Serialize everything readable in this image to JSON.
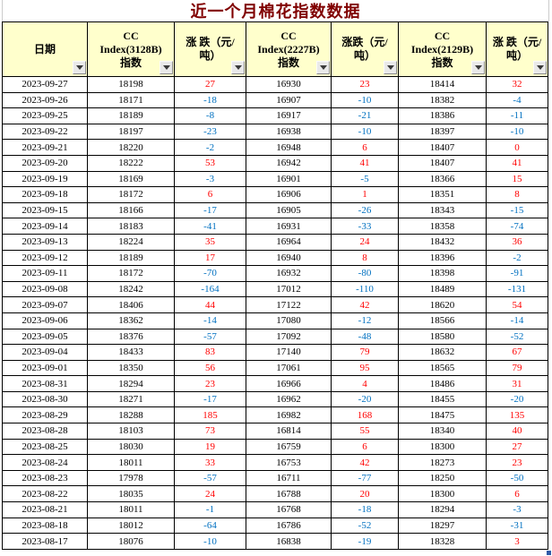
{
  "title": "近一个月棉花指数数据",
  "colors": {
    "title": "#800000",
    "header_bg": "#FFFFCC",
    "positive": "#FF0000",
    "negative": "#0070C0",
    "grid": "#000000",
    "fill_handle": "#2F5BA8"
  },
  "table": {
    "columns": [
      {
        "label": "日期"
      },
      {
        "label": "CC\nIndex(3128B)\n指数"
      },
      {
        "label": "涨 跌（元/\n吨）"
      },
      {
        "label": "CC\nIndex(2227B)\n指数"
      },
      {
        "label": "涨跌（元/\n吨）"
      },
      {
        "label": "CC\nIndex(2129B)\n指数"
      },
      {
        "label": "涨 跌（元/\n吨）"
      }
    ],
    "rows": [
      [
        "2023-09-27",
        "18198",
        "27",
        "16930",
        "23",
        "18414",
        "32"
      ],
      [
        "2023-09-26",
        "18171",
        "-18",
        "16907",
        "-10",
        "18382",
        "-4"
      ],
      [
        "2023-09-25",
        "18189",
        "-8",
        "16917",
        "-21",
        "18386",
        "-11"
      ],
      [
        "2023-09-22",
        "18197",
        "-23",
        "16938",
        "-10",
        "18397",
        "-10"
      ],
      [
        "2023-09-21",
        "18220",
        "-2",
        "16948",
        "6",
        "18407",
        "0"
      ],
      [
        "2023-09-20",
        "18222",
        "53",
        "16942",
        "41",
        "18407",
        "41"
      ],
      [
        "2023-09-19",
        "18169",
        "-3",
        "16901",
        "-5",
        "18366",
        "15"
      ],
      [
        "2023-09-18",
        "18172",
        "6",
        "16906",
        "1",
        "18351",
        "8"
      ],
      [
        "2023-09-15",
        "18166",
        "-17",
        "16905",
        "-26",
        "18343",
        "-15"
      ],
      [
        "2023-09-14",
        "18183",
        "-41",
        "16931",
        "-33",
        "18358",
        "-74"
      ],
      [
        "2023-09-13",
        "18224",
        "35",
        "16964",
        "24",
        "18432",
        "36"
      ],
      [
        "2023-09-12",
        "18189",
        "17",
        "16940",
        "8",
        "18396",
        "-2"
      ],
      [
        "2023-09-11",
        "18172",
        "-70",
        "16932",
        "-80",
        "18398",
        "-91"
      ],
      [
        "2023-09-08",
        "18242",
        "-164",
        "17012",
        "-110",
        "18489",
        "-131"
      ],
      [
        "2023-09-07",
        "18406",
        "44",
        "17122",
        "42",
        "18620",
        "54"
      ],
      [
        "2023-09-06",
        "18362",
        "-14",
        "17080",
        "-12",
        "18566",
        "-14"
      ],
      [
        "2023-09-05",
        "18376",
        "-57",
        "17092",
        "-48",
        "18580",
        "-52"
      ],
      [
        "2023-09-04",
        "18433",
        "83",
        "17140",
        "79",
        "18632",
        "67"
      ],
      [
        "2023-09-01",
        "18350",
        "56",
        "17061",
        "95",
        "18565",
        "79"
      ],
      [
        "2023-08-31",
        "18294",
        "23",
        "16966",
        "4",
        "18486",
        "31"
      ],
      [
        "2023-08-30",
        "18271",
        "-17",
        "16962",
        "-20",
        "18455",
        "-20"
      ],
      [
        "2023-08-29",
        "18288",
        "185",
        "16982",
        "168",
        "18475",
        "135"
      ],
      [
        "2023-08-28",
        "18103",
        "73",
        "16814",
        "55",
        "18340",
        "40"
      ],
      [
        "2023-08-25",
        "18030",
        "19",
        "16759",
        "6",
        "18300",
        "27"
      ],
      [
        "2023-08-24",
        "18011",
        "33",
        "16753",
        "42",
        "18273",
        "23"
      ],
      [
        "2023-08-23",
        "17978",
        "-57",
        "16711",
        "-77",
        "18250",
        "-50"
      ],
      [
        "2023-08-22",
        "18035",
        "24",
        "16788",
        "20",
        "18300",
        "6"
      ],
      [
        "2023-08-21",
        "18011",
        "-1",
        "16768",
        "-18",
        "18294",
        "-3"
      ],
      [
        "2023-08-18",
        "18012",
        "-64",
        "16786",
        "-52",
        "18297",
        "-31"
      ],
      [
        "2023-08-17",
        "18076",
        "-10",
        "16838",
        "-19",
        "18328",
        "3"
      ]
    ]
  }
}
